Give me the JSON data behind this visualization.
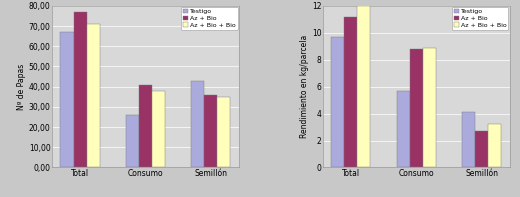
{
  "chart1": {
    "categories": [
      "Total",
      "Consumo",
      "Semillón"
    ],
    "series": {
      "Testigo": [
        67,
        26,
        43
      ],
      "Az + Bio": [
        77,
        41,
        36
      ],
      "Az + Bio + Bio": [
        71,
        38,
        35
      ]
    },
    "ylabel": "Nº de Papas",
    "ylim": [
      0,
      80
    ],
    "yticks": [
      0,
      10,
      20,
      30,
      40,
      50,
      60,
      70,
      80
    ],
    "ytick_labels": [
      "0,00",
      "10,00",
      "20,00",
      "30,00",
      "40,00",
      "50,00",
      "60,00",
      "70,00",
      "80,00"
    ]
  },
  "chart2": {
    "categories": [
      "Total",
      "Consumo",
      "Semillón"
    ],
    "series": {
      "Testigo": [
        9.7,
        5.7,
        4.1
      ],
      "Az + Bio": [
        11.2,
        8.8,
        2.7
      ],
      "Az + Bio + Bio": [
        12.0,
        8.9,
        3.2
      ]
    },
    "ylabel": "Rendimiento en kg/parcela",
    "ylim": [
      0,
      12
    ],
    "yticks": [
      0,
      2,
      4,
      6,
      8,
      10,
      12
    ],
    "ytick_labels": [
      "0",
      "2",
      "4",
      "6",
      "8",
      "10",
      "12"
    ]
  },
  "bar_colors": [
    "#aaaadd",
    "#993366",
    "#ffffbb"
  ],
  "bar_edgecolor": "#777777",
  "legend_labels": [
    "Testigo",
    "Az + Bio",
    "Az + Bio + Bio"
  ],
  "background_color": "#c8c8c8",
  "plot_bg_color": "#d8d8d8",
  "bar_width": 0.2,
  "fontsize": 6.0,
  "tick_fontsize": 5.5,
  "ylabel_fontsize": 5.5
}
